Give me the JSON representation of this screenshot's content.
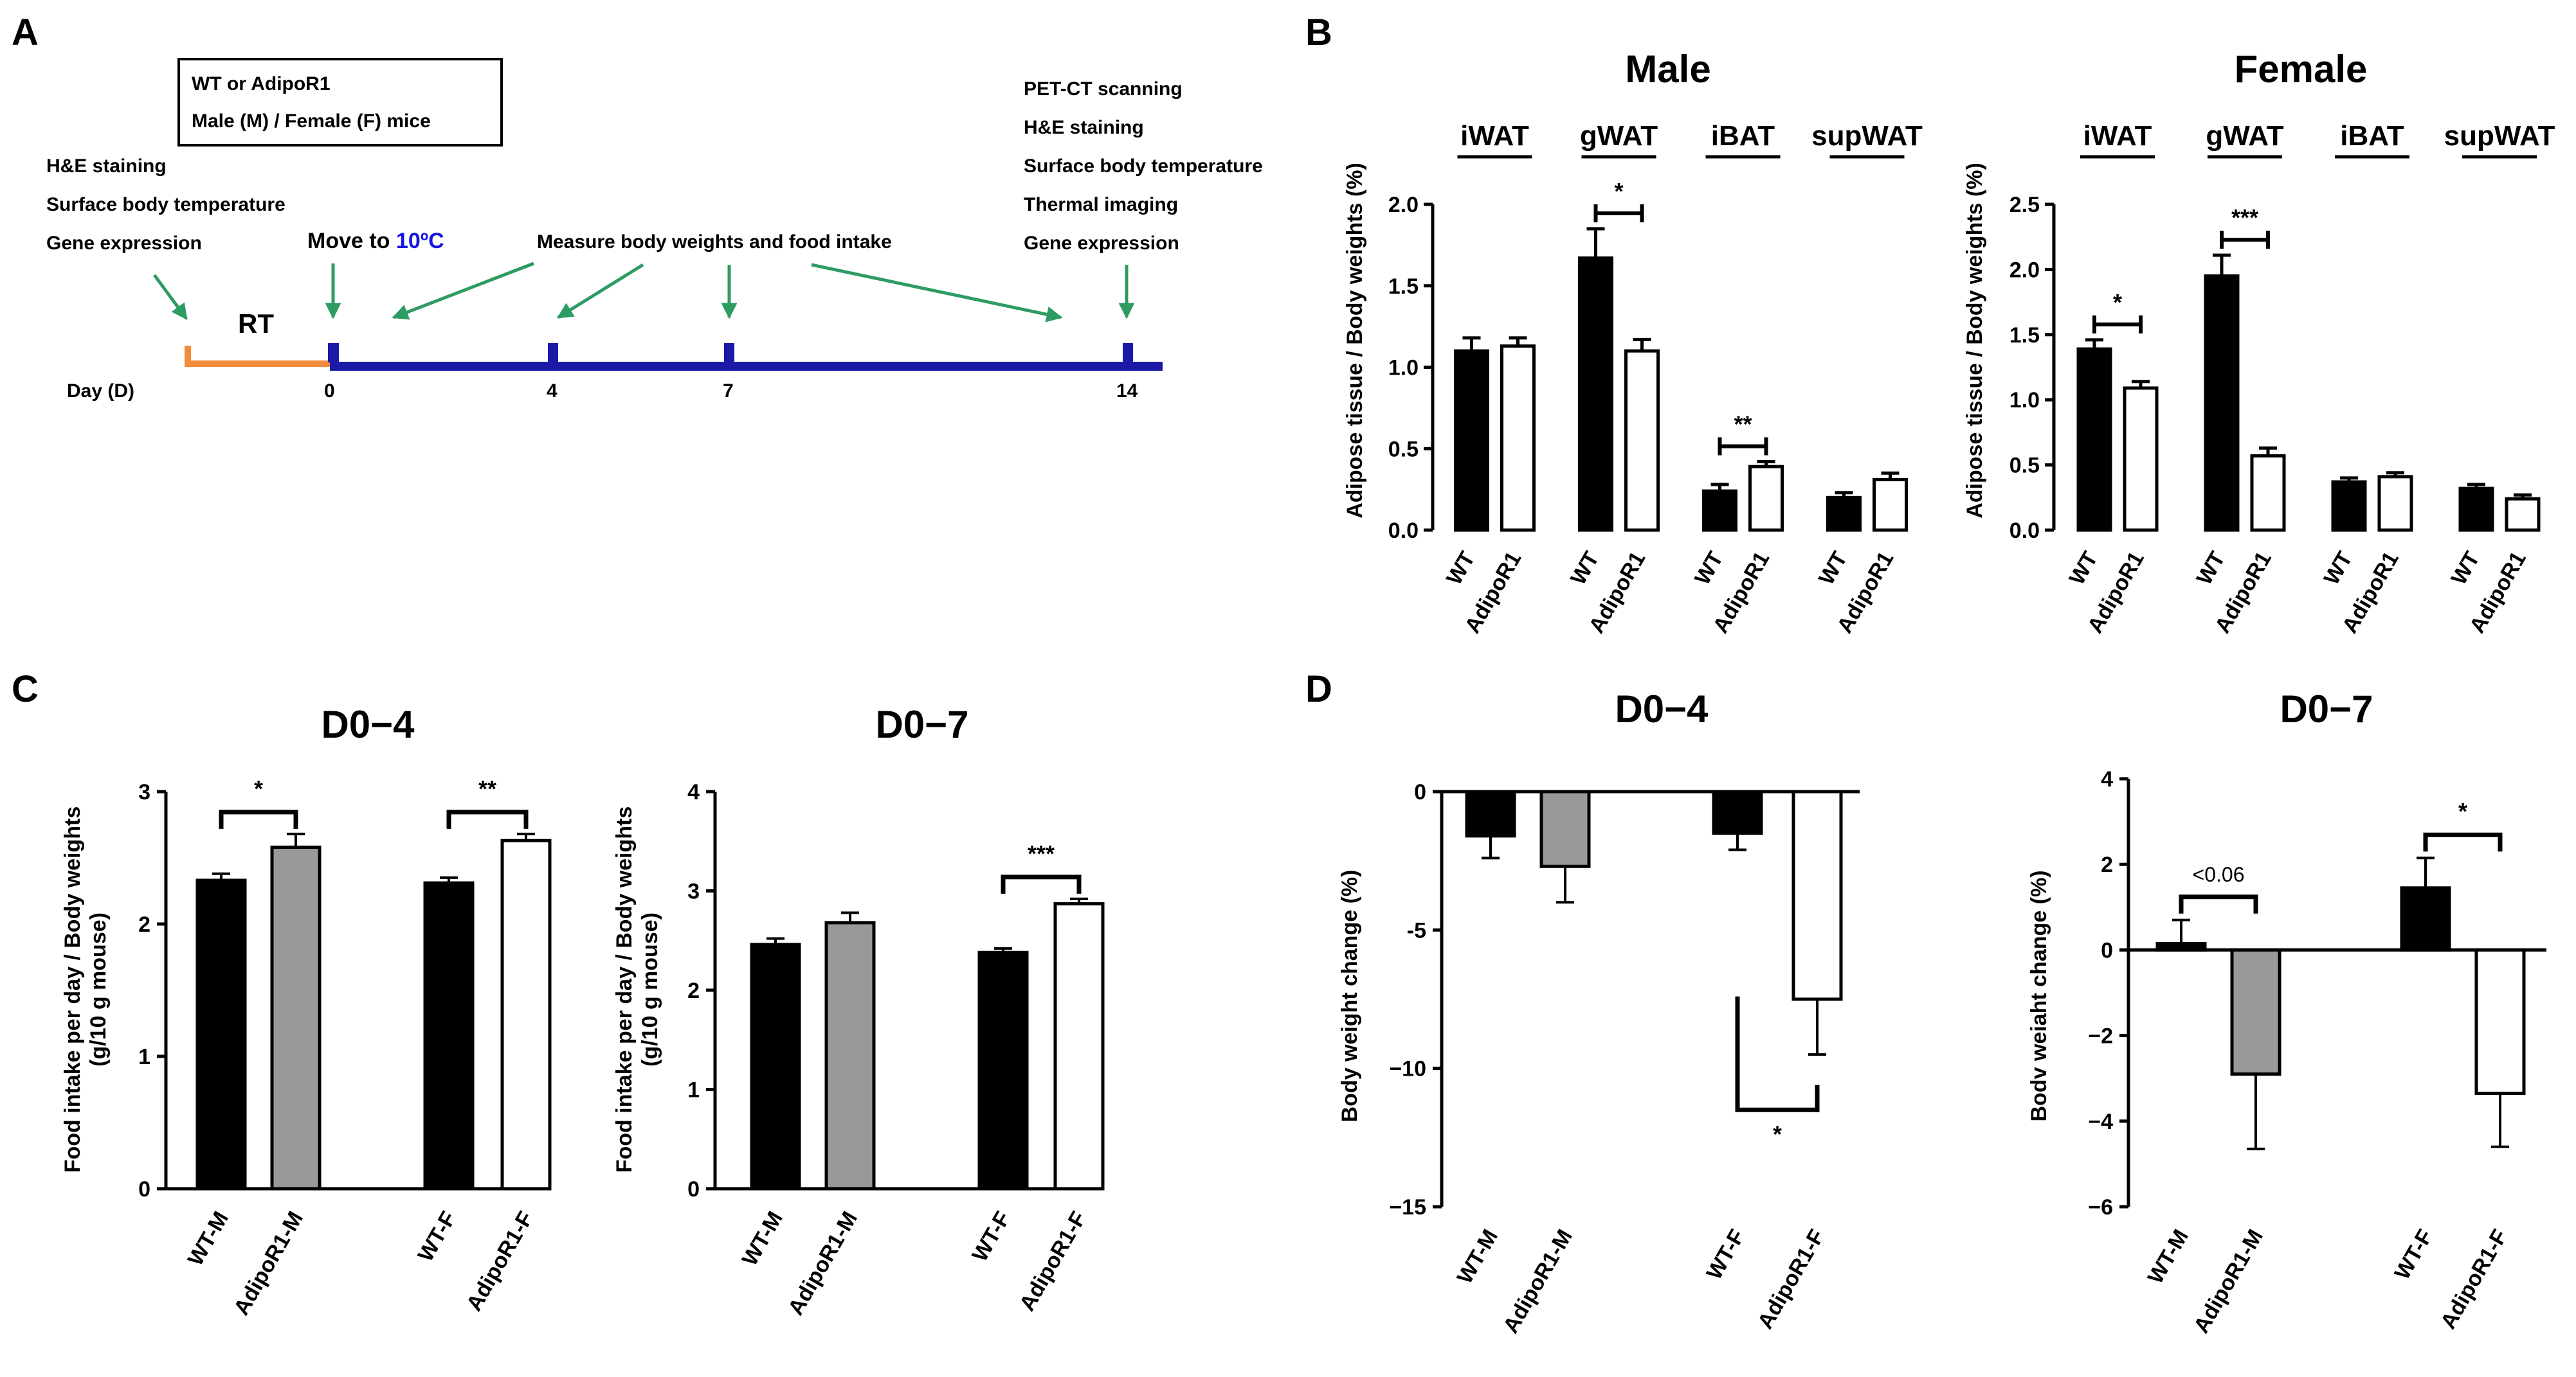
{
  "panels": {
    "a": "A",
    "b": "B",
    "c": "C",
    "d": "D"
  },
  "timeline": {
    "box_line1": "WT or AdipoR1",
    "box_line2": "Male (M) / Female (F) mice",
    "left_list": [
      "H&E staining",
      "Surface body temperature",
      "Gene expression"
    ],
    "right_list": [
      "PET-CT scanning",
      "H&E staining",
      "Surface body temperature",
      "Thermal imaging",
      "Gene expression"
    ],
    "move_to": "Move to ",
    "move_temp": "10ºC",
    "measure": "Measure body weights and food intake",
    "rt": "RT",
    "day_label": "Day (D)",
    "days": [
      "0",
      "4",
      "7",
      "14"
    ],
    "colors": {
      "rt": "#f28c3c",
      "cold": "#1a1aa6",
      "arrow": "#2e9b63",
      "temp": "#1515e0"
    }
  },
  "chart_data": [
    {
      "id": "b_male",
      "type": "bar",
      "title": "Male",
      "ylabel": "Adipose tissue / Body weights (%)",
      "ylim": [
        0,
        2.0
      ],
      "yticks": [
        "0.0",
        "0.5",
        "1.0",
        "1.5",
        "2.0"
      ],
      "groups": [
        "iWAT",
        "gWAT",
        "iBAT",
        "supWAT"
      ],
      "series": [
        {
          "name": "WT",
          "values": [
            1.1,
            1.67,
            0.24,
            0.2
          ],
          "errors": [
            0.08,
            0.18,
            0.04,
            0.03
          ]
        },
        {
          "name": "AdipoR1",
          "values": [
            1.13,
            1.1,
            0.39,
            0.31
          ],
          "errors": [
            0.05,
            0.07,
            0.03,
            0.04
          ]
        }
      ],
      "significance": [
        {
          "group": "gWAT",
          "label": "*"
        },
        {
          "group": "iBAT",
          "label": "**"
        }
      ]
    },
    {
      "id": "b_female",
      "type": "bar",
      "title": "Female",
      "ylabel": "Adipose tissue / Body weights (%)",
      "ylim": [
        0,
        2.5
      ],
      "yticks": [
        "0.0",
        "0.5",
        "1.0",
        "1.5",
        "2.0",
        "2.5"
      ],
      "groups": [
        "iWAT",
        "gWAT",
        "iBAT",
        "supWAT"
      ],
      "series": [
        {
          "name": "WT",
          "values": [
            1.39,
            1.95,
            0.37,
            0.32
          ],
          "errors": [
            0.07,
            0.16,
            0.03,
            0.03
          ]
        },
        {
          "name": "AdipoR1",
          "values": [
            1.09,
            0.57,
            0.41,
            0.24
          ],
          "errors": [
            0.05,
            0.06,
            0.03,
            0.03
          ]
        }
      ],
      "significance": [
        {
          "group": "iWAT",
          "label": "*"
        },
        {
          "group": "gWAT",
          "label": "***"
        }
      ]
    },
    {
      "id": "c_d04",
      "type": "bar",
      "title": "D0−4",
      "ylabel_line1": "Food intake per day / Body weights",
      "ylabel_line2": "(g/10 g mouse)",
      "ylim": [
        0,
        3
      ],
      "yticks": [
        "0",
        "1",
        "2",
        "3"
      ],
      "categories": [
        "WT-M",
        "AdipoR1-M",
        "WT-F",
        "AdipoR1-F"
      ],
      "values": [
        2.33,
        2.58,
        2.31,
        2.63
      ],
      "errors": [
        0.05,
        0.1,
        0.04,
        0.05
      ],
      "fills": [
        "#000000",
        "#999999",
        "#000000",
        "#ffffff"
      ],
      "significance": [
        {
          "pair": [
            0,
            1
          ],
          "label": "*"
        },
        {
          "pair": [
            2,
            3
          ],
          "label": "**"
        }
      ]
    },
    {
      "id": "c_d07",
      "type": "bar",
      "title": "D0−7",
      "ylabel_line1": "Food intake per day / Body weights",
      "ylabel_line2": "(g/10 g mouse)",
      "ylim": [
        0,
        4
      ],
      "yticks": [
        "0",
        "1",
        "2",
        "3",
        "4"
      ],
      "categories": [
        "WT-M",
        "AdipoR1-M",
        "WT-F",
        "AdipoR1-F"
      ],
      "values": [
        2.46,
        2.68,
        2.38,
        2.87
      ],
      "errors": [
        0.06,
        0.1,
        0.04,
        0.05
      ],
      "fills": [
        "#000000",
        "#999999",
        "#000000",
        "#ffffff"
      ],
      "significance": [
        {
          "pair": [
            2,
            3
          ],
          "label": "***"
        }
      ]
    },
    {
      "id": "d_d04",
      "type": "bar",
      "title": "D0−4",
      "ylabel": "Body weight change (%)",
      "ylim": [
        -15,
        0
      ],
      "yticks": [
        "0",
        "-5",
        "−10",
        "−15"
      ],
      "categories": [
        "WT-M",
        "AdipoR1-M",
        "WT-F",
        "AdipoR1-F"
      ],
      "values": [
        -1.6,
        -2.7,
        -1.5,
        -7.5
      ],
      "errors": [
        0.8,
        1.3,
        0.6,
        2.0
      ],
      "fills": [
        "#000000",
        "#999999",
        "#000000",
        "#ffffff"
      ],
      "significance": [
        {
          "pair": [
            2,
            3
          ],
          "label": "*"
        }
      ]
    },
    {
      "id": "d_d07",
      "type": "bar",
      "title": "D0−7",
      "ylabel": "Bodv weiaht change (%)",
      "ylim": [
        -6,
        4
      ],
      "yticks": [
        "4",
        "2",
        "0",
        "−2",
        "−4",
        "−6"
      ],
      "categories": [
        "WT-M",
        "AdipoR1-M",
        "WT-F",
        "AdipoR1-F"
      ],
      "values": [
        0.15,
        -2.9,
        1.45,
        -3.35
      ],
      "errors": [
        0.55,
        1.75,
        0.7,
        1.25
      ],
      "fills": [
        "#000000",
        "#999999",
        "#000000",
        "#ffffff"
      ],
      "significance": [
        {
          "pair": [
            0,
            1
          ],
          "label": "<0.06"
        },
        {
          "pair": [
            2,
            3
          ],
          "label": "*"
        }
      ]
    }
  ]
}
